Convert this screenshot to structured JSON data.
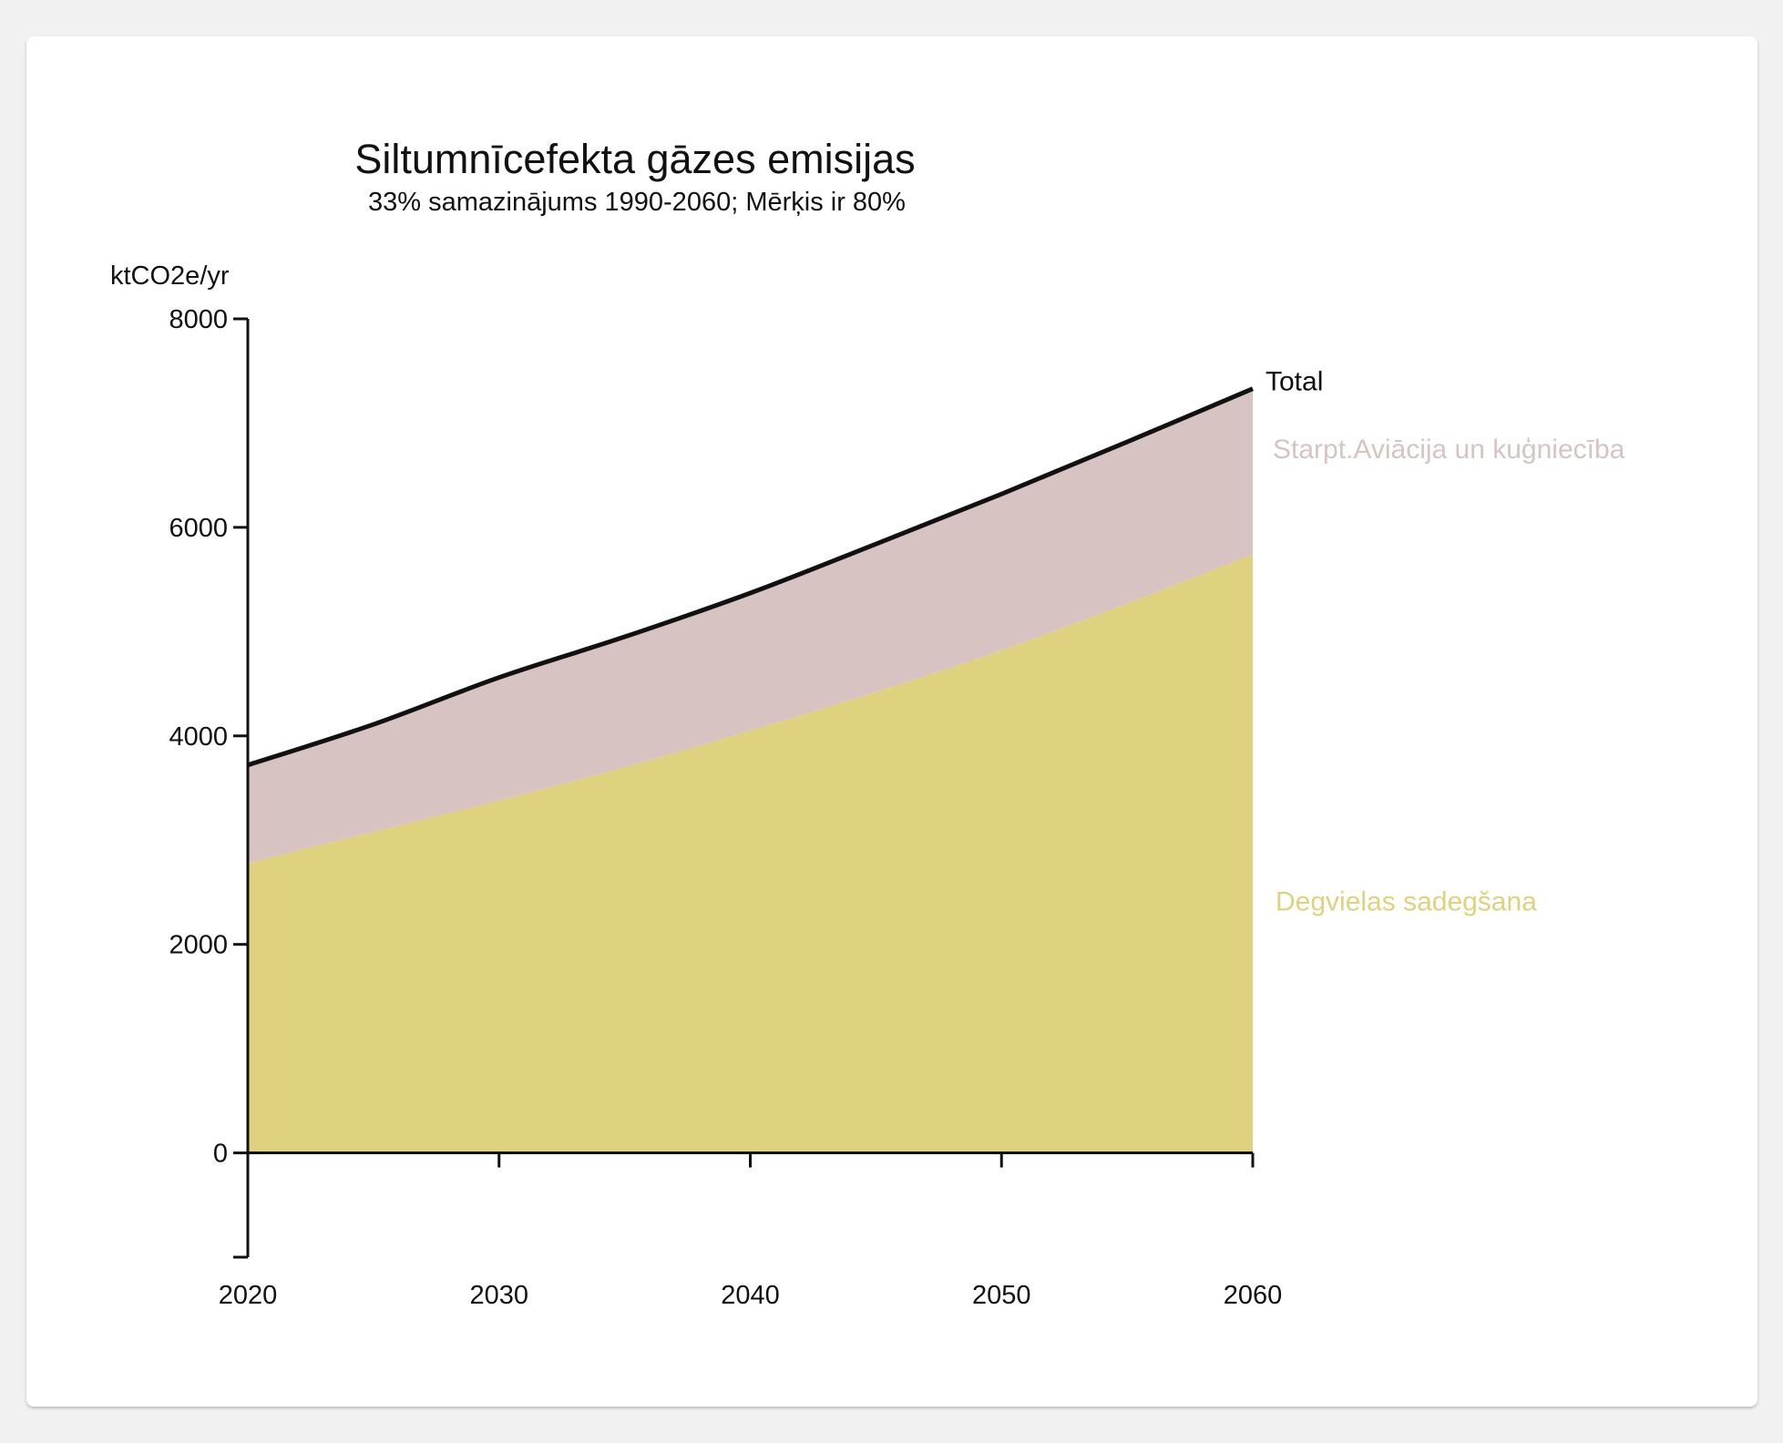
{
  "chart_data": {
    "type": "area",
    "title": "Siltumnīcefekta gāzes emisijas",
    "subtitle": "33% samazinājums 1990-2060; Mērķis ir 80%",
    "ylabel": "ktCO2e/yr",
    "xlabel": "",
    "ylim": [
      -1000,
      8000
    ],
    "xlim": [
      2020,
      2060
    ],
    "y_ticks": [
      0,
      2000,
      4000,
      6000,
      8000
    ],
    "y_tick_labels": [
      "0",
      "2000",
      "4000",
      "6000",
      "8000"
    ],
    "x_ticks": [
      2020,
      2030,
      2040,
      2050,
      2060
    ],
    "x_tick_labels": [
      "2020",
      "2030",
      "2040",
      "2050",
      "2060"
    ],
    "stacked": true,
    "x": [
      2020,
      2025,
      2030,
      2035,
      2040,
      2045,
      2050,
      2055,
      2060
    ],
    "series": [
      {
        "name": "Degvielas sadegšana",
        "color": "#dfd27e",
        "values": [
          2780,
          3080,
          3380,
          3700,
          4050,
          4420,
          4820,
          5270,
          5740
        ]
      },
      {
        "name": "Starpt.Aviācija un kuģniecība",
        "color": "#d8c3c3",
        "values": [
          940,
          1030,
          1180,
          1250,
          1320,
          1420,
          1500,
          1550,
          1590
        ]
      }
    ],
    "total": {
      "name": "Total",
      "color": "#111111",
      "values": [
        3720,
        4110,
        4560,
        4950,
        5370,
        5840,
        6320,
        6820,
        7330
      ]
    },
    "grid": false,
    "legend": "inline-right"
  }
}
